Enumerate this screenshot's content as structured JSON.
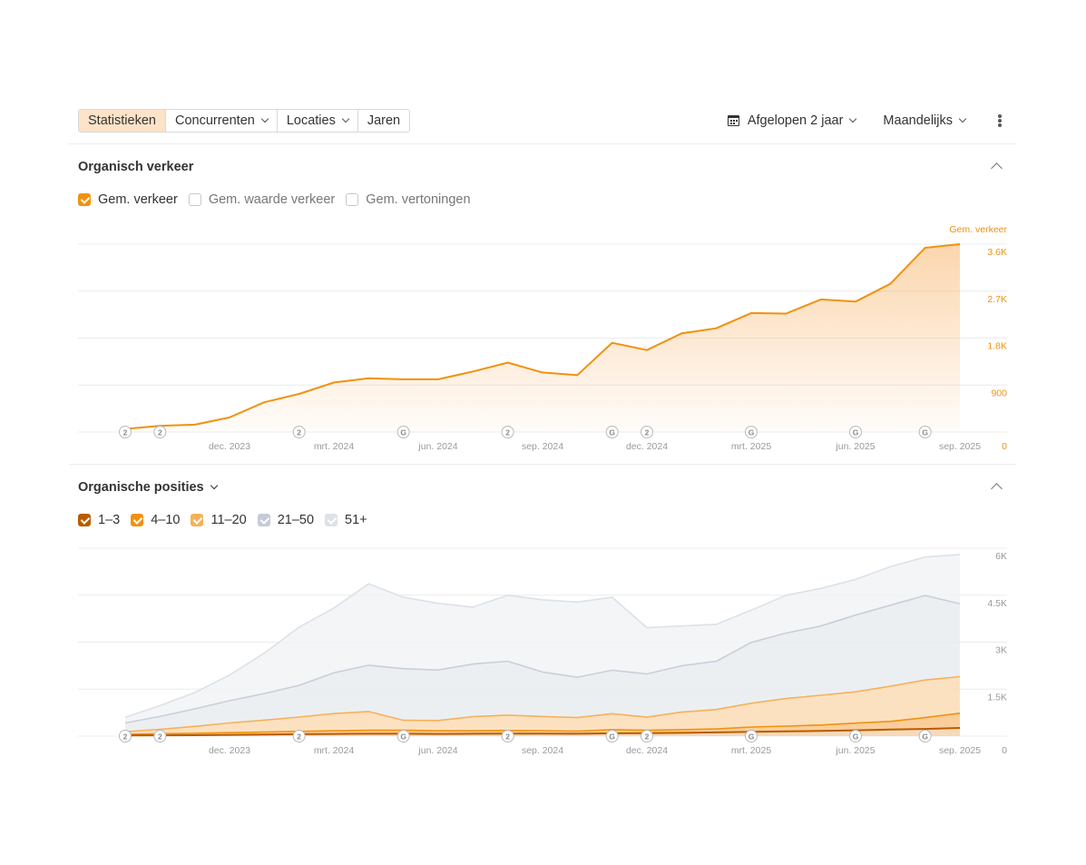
{
  "toolbar": {
    "tabs": [
      {
        "label": "Statistieken",
        "active": true,
        "dropdown": false
      },
      {
        "label": "Concurrenten",
        "active": false,
        "dropdown": true
      },
      {
        "label": "Locaties",
        "active": false,
        "dropdown": true
      },
      {
        "label": "Jaren",
        "active": false,
        "dropdown": false
      }
    ],
    "period_label": "Afgelopen 2 jaar",
    "interval_label": "Maandelijks",
    "period_icon": "calendar-icon",
    "menu_icon": "kebab-menu-icon"
  },
  "traffic": {
    "title": "Organisch verkeer",
    "checkboxes": [
      {
        "label": "Gem. verkeer",
        "checked": true
      },
      {
        "label": "Gem. waarde verkeer",
        "checked": false
      },
      {
        "label": "Gem. vertoningen",
        "checked": false
      }
    ]
  },
  "positions": {
    "title": "Organische posities",
    "checkboxes": [
      {
        "label": "1–3",
        "checked": true,
        "color": "#b85c00"
      },
      {
        "label": "4–10",
        "checked": true,
        "color": "#f0920e"
      },
      {
        "label": "11–20",
        "checked": true,
        "color": "#f6b15a"
      },
      {
        "label": "21–50",
        "checked": true,
        "color": "#c4cbd6"
      },
      {
        "label": "51+",
        "checked": true,
        "color": "#dde1e8"
      }
    ]
  },
  "chart_data": [
    {
      "type": "area",
      "axis_title": "Gem. verkeer",
      "x": [
        "2023-09",
        "2023-10",
        "2023-11",
        "2023-12",
        "2024-01",
        "2024-02",
        "2024-03",
        "2024-04",
        "2024-05",
        "2024-06",
        "2024-07",
        "2024-08",
        "2024-09",
        "2024-10",
        "2024-11",
        "2024-12",
        "2025-01",
        "2025-02",
        "2025-03",
        "2025-04",
        "2025-05",
        "2025-06",
        "2025-07",
        "2025-08",
        "2025-09"
      ],
      "x_tick_labels": [
        "dec. 2023",
        "mrt. 2024",
        "jun. 2024",
        "sep. 2024",
        "dec. 2024",
        "mrt. 2025",
        "jun. 2025",
        "sep. 2025"
      ],
      "series": [
        {
          "values": [
            60,
            120,
            140,
            280,
            570,
            730,
            950,
            1030,
            1010,
            1010,
            1160,
            1330,
            1140,
            1090,
            1710,
            1570,
            1890,
            1990,
            2280,
            2270,
            2540,
            2500,
            2840,
            3530,
            3600
          ],
          "color": "#f0920e"
        }
      ],
      "y_ticks": [
        "0",
        "900",
        "1.8K",
        "2.7K",
        "3.6K"
      ],
      "ylim": [
        0,
        3600
      ],
      "y_axis_position": "right",
      "grid": true,
      "annotations": [
        {
          "x": "2023-09",
          "label": "2"
        },
        {
          "x": "2023-10",
          "label": "2"
        },
        {
          "x": "2024-02",
          "label": "2"
        },
        {
          "x": "2024-05",
          "label": "G"
        },
        {
          "x": "2024-08",
          "label": "2"
        },
        {
          "x": "2024-11",
          "label": "G"
        },
        {
          "x": "2024-12",
          "label": "2"
        },
        {
          "x": "2025-03",
          "label": "G"
        },
        {
          "x": "2025-06",
          "label": "G"
        },
        {
          "x": "2025-08",
          "label": "G"
        }
      ]
    },
    {
      "type": "area",
      "stacked": true,
      "x": [
        "2023-09",
        "2023-10",
        "2023-11",
        "2023-12",
        "2024-01",
        "2024-02",
        "2024-03",
        "2024-04",
        "2024-05",
        "2024-06",
        "2024-07",
        "2024-08",
        "2024-09",
        "2024-10",
        "2024-11",
        "2024-12",
        "2025-01",
        "2025-02",
        "2025-03",
        "2025-04",
        "2025-05",
        "2025-06",
        "2025-07",
        "2025-08",
        "2025-09"
      ],
      "x_tick_labels": [
        "dec. 2023",
        "mrt. 2024",
        "jun. 2024",
        "sep. 2024",
        "dec. 2024",
        "mrt. 2025",
        "jun. 2025",
        "sep. 2025"
      ],
      "series": [
        {
          "name": "1–3",
          "color": "#b85c00",
          "values": [
            20,
            25,
            30,
            40,
            50,
            60,
            70,
            75,
            75,
            70,
            75,
            80,
            80,
            75,
            90,
            95,
            105,
            120,
            140,
            150,
            165,
            185,
            210,
            230,
            260
          ]
        },
        {
          "name": "4–10",
          "color": "#f0920e",
          "values": [
            40,
            50,
            60,
            70,
            80,
            90,
            100,
            110,
            110,
            100,
            95,
            100,
            95,
            85,
            115,
            90,
            100,
            110,
            150,
            170,
            190,
            230,
            260,
            360,
            470
          ]
        },
        {
          "name": "11–20",
          "color": "#f6b15a",
          "values": [
            80,
            140,
            220,
            310,
            380,
            460,
            550,
            600,
            320,
            330,
            450,
            490,
            450,
            430,
            510,
            420,
            560,
            620,
            760,
            880,
            950,
            1000,
            1120,
            1200,
            1170
          ]
        },
        {
          "name": "21–50",
          "color": "#c4cbd6",
          "values": [
            280,
            410,
            560,
            710,
            850,
            1010,
            1300,
            1480,
            1650,
            1610,
            1680,
            1720,
            1420,
            1290,
            1390,
            1380,
            1480,
            1540,
            1940,
            2090,
            2210,
            2450,
            2590,
            2700,
            2330
          ]
        },
        {
          "name": "51+",
          "color": "#dde1e8",
          "values": [
            180,
            350,
            520,
            820,
            1290,
            1860,
            2070,
            2600,
            2280,
            2130,
            1820,
            2110,
            2310,
            2400,
            2330,
            1480,
            1270,
            1180,
            1030,
            1210,
            1200,
            1140,
            1230,
            1230,
            1570
          ]
        }
      ],
      "y_ticks": [
        "0",
        "1.5K",
        "3K",
        "4.5K",
        "6K"
      ],
      "ylim": [
        0,
        6000
      ],
      "y_axis_position": "right",
      "grid": true,
      "annotations": [
        {
          "x": "2023-09",
          "label": "2"
        },
        {
          "x": "2023-10",
          "label": "2"
        },
        {
          "x": "2024-02",
          "label": "2"
        },
        {
          "x": "2024-05",
          "label": "G"
        },
        {
          "x": "2024-08",
          "label": "2"
        },
        {
          "x": "2024-11",
          "label": "G"
        },
        {
          "x": "2024-12",
          "label": "2"
        },
        {
          "x": "2025-03",
          "label": "G"
        },
        {
          "x": "2025-06",
          "label": "G"
        },
        {
          "x": "2025-08",
          "label": "G"
        }
      ]
    }
  ]
}
